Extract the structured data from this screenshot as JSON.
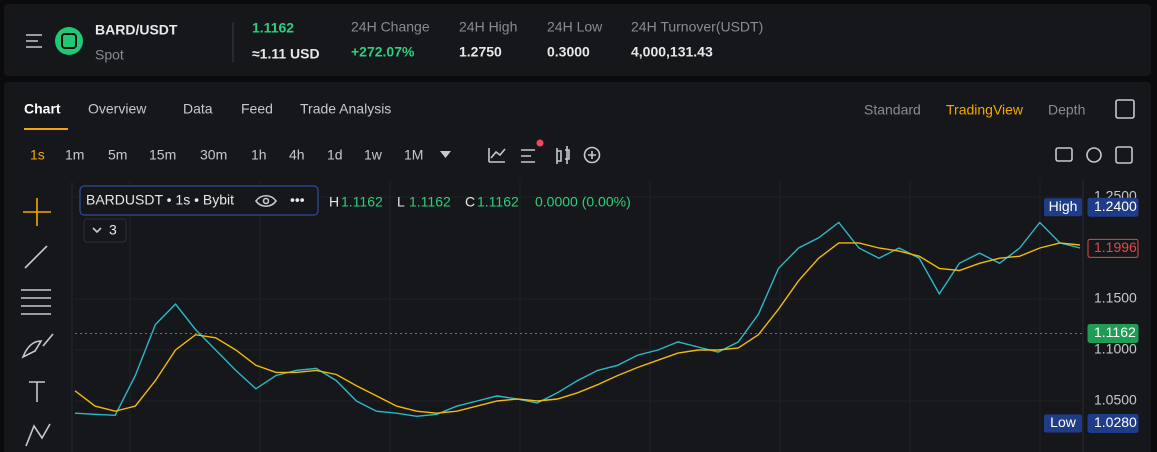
{
  "header": {
    "symbol": "BARD/USDT",
    "market": "Spot",
    "last_price": "1.1162",
    "usd_price": "≈1.11 USD",
    "stats": [
      {
        "label": "24H Change",
        "value": "+272.07%"
      },
      {
        "label": "24H High",
        "value": "1.2750"
      },
      {
        "label": "24H Low",
        "value": "0.3000"
      },
      {
        "label": "24H Turnover(USDT)",
        "value": "4,000,131.43"
      }
    ]
  },
  "tabs": [
    "Chart",
    "Overview",
    "Data",
    "Feed",
    "Trade Analysis"
  ],
  "views": [
    "Standard",
    "TradingView",
    "Depth"
  ],
  "intervals": [
    "1s",
    "1m",
    "5m",
    "15m",
    "30m",
    "1h",
    "4h",
    "1d",
    "1w",
    "1M"
  ],
  "legend": {
    "symbol": "BARDUSDT • 1s • Bybit",
    "indicator_count": "3",
    "ohlc": [
      {
        "key": "H",
        "value": "1.1162"
      },
      {
        "key": "L",
        "value": "1.1162"
      },
      {
        "key": "C",
        "value": "1.1162"
      }
    ],
    "change": "0.0000 (0.00%)"
  },
  "chart_data": {
    "type": "line",
    "series": [
      {
        "color": "#2bb8c8",
        "values": [
          1.038,
          1.037,
          1.036,
          1.075,
          1.125,
          1.145,
          1.12,
          1.1,
          1.08,
          1.062,
          1.075,
          1.08,
          1.082,
          1.07,
          1.05,
          1.04,
          1.038,
          1.035,
          1.037,
          1.045,
          1.05,
          1.055,
          1.052,
          1.048,
          1.058,
          1.07,
          1.08,
          1.085,
          1.095,
          1.1,
          1.108,
          1.103,
          1.098,
          1.108,
          1.135,
          1.18,
          1.2,
          1.21,
          1.225,
          1.2,
          1.19,
          1.2,
          1.19,
          1.155,
          1.185,
          1.195,
          1.185,
          1.2,
          1.225,
          1.205,
          1.2
        ]
      },
      {
        "color": "#f0b90b",
        "values": [
          1.06,
          1.045,
          1.04,
          1.045,
          1.07,
          1.1,
          1.115,
          1.112,
          1.1,
          1.085,
          1.078,
          1.078,
          1.08,
          1.076,
          1.065,
          1.055,
          1.045,
          1.04,
          1.038,
          1.04,
          1.045,
          1.05,
          1.052,
          1.05,
          1.052,
          1.058,
          1.066,
          1.075,
          1.083,
          1.09,
          1.097,
          1.1,
          1.1,
          1.102,
          1.115,
          1.14,
          1.168,
          1.19,
          1.205,
          1.205,
          1.2,
          1.197,
          1.192,
          1.18,
          1.178,
          1.185,
          1.19,
          1.192,
          1.2,
          1.205,
          1.203
        ]
      }
    ],
    "ylim": [
      1.0,
      1.2667
    ],
    "yticks": [
      {
        "value": 1.25,
        "label": "1.2500"
      },
      {
        "value": 1.15,
        "label": "1.1500"
      },
      {
        "value": 1.1,
        "label": "1.1000"
      },
      {
        "value": 1.05,
        "label": "1.0500"
      }
    ],
    "markers": [
      {
        "name": "High",
        "value": 1.24,
        "label": "1.2400",
        "color": "#1f3c88"
      },
      {
        "value": 1.1996,
        "label": "1.1996",
        "color": "#e04a4a"
      },
      {
        "value": 1.1162,
        "label": "1.1162",
        "color": "#1f9d55"
      },
      {
        "name": "Low",
        "value": 1.028,
        "label": "1.0280",
        "color": "#1f3c88"
      }
    ]
  }
}
